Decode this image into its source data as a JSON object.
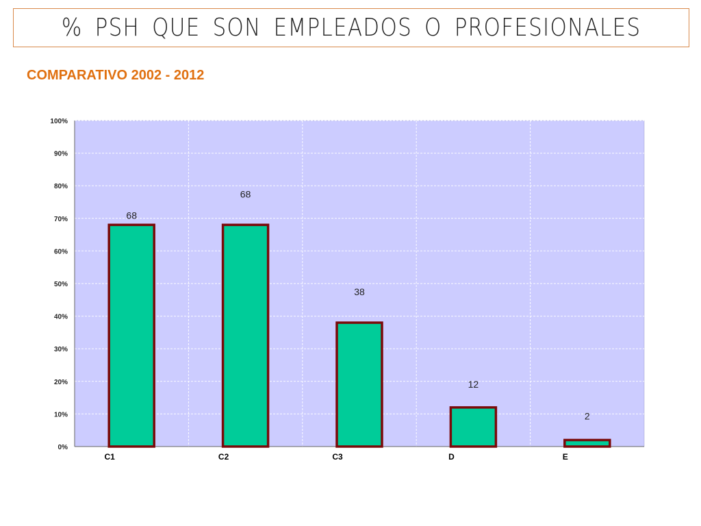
{
  "header": {
    "title": "% PSH  QUE  SON  EMPLEADOS  O  PROFESIONALES",
    "subtitle": "COMPARATIVO 2002 - 2012"
  },
  "colors": {
    "plot_background": "#ccccff",
    "bar_fill": "#00cc99",
    "bar_border": "#7a0a0a",
    "title_border": "#d8884a",
    "subtitle": "#e07010"
  },
  "chart_data": {
    "type": "bar",
    "title": "",
    "xlabel": "",
    "ylabel": "",
    "categories": [
      "C1",
      "C2",
      "C3",
      "D",
      "E"
    ],
    "values": [
      68,
      68,
      38,
      12,
      2
    ],
    "data_labels": [
      "68",
      "68",
      "38",
      "12",
      "2"
    ],
    "ylim": [
      0,
      100
    ],
    "yticks": [
      0,
      10,
      20,
      30,
      40,
      50,
      60,
      70,
      80,
      90,
      100
    ],
    "ytick_labels": [
      "0%",
      "10%",
      "20%",
      "30%",
      "40%",
      "50%",
      "60%",
      "70%",
      "80%",
      "90%",
      "100%"
    ],
    "grid": true,
    "legend": "none"
  }
}
